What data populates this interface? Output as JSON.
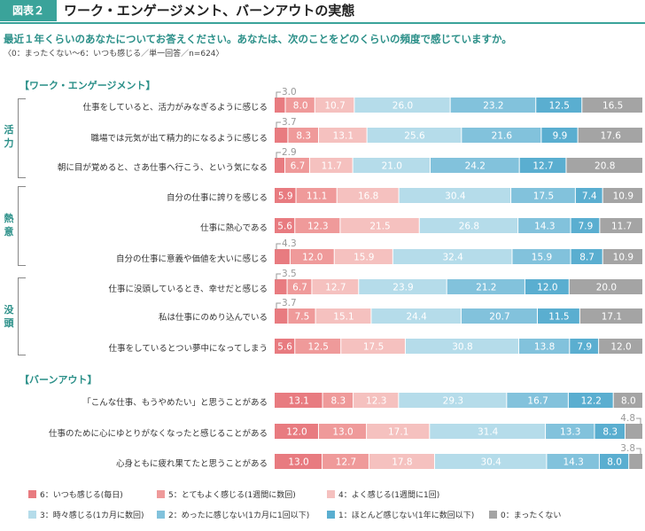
{
  "header": {
    "badge": "図表２",
    "title": "ワーク・エンゲージメント、バーンアウトの実態",
    "question": "最近１年くらいのあなたについてお答えください。あなたは、次のことをどのくらいの頻度で感じていますか。",
    "note": "〈0：まったくない〜6：いつも感じる／単一回答／n=624〉"
  },
  "chart_data": {
    "type": "bar",
    "orientation": "horizontal-stacked-100",
    "xlim": [
      0,
      100
    ],
    "categories_order": [
      "6",
      "5",
      "4",
      "3",
      "2",
      "1",
      "0"
    ],
    "legend": [
      {
        "label": "6：いつも感じる(毎日)",
        "color": "#e87b80"
      },
      {
        "label": "5：とてもよく感じる(1週間に数回)",
        "color": "#ef9a9a"
      },
      {
        "label": "4：よく感じる(1週間に1回)",
        "color": "#f5c1bf"
      },
      {
        "label": "3：時々感じる(1カ月に数回)",
        "color": "#b5dcea"
      },
      {
        "label": "2：めったに感じない(1カ月に1回以下)",
        "color": "#82c2dc"
      },
      {
        "label": "1：ほとんど感じない(1年に数回以下)",
        "color": "#5aaed0"
      },
      {
        "label": "0：まったくない",
        "color": "#a4a4a4"
      }
    ],
    "sections": [
      {
        "title": "【ワーク・エンゲージメント】",
        "groups": [
          {
            "name": "活力",
            "rows": [
              {
                "label": "仕事をしていると、活力がみなぎるように感じる",
                "values": [
                  3.0,
                  8.0,
                  10.7,
                  26.0,
                  23.2,
                  12.5,
                  16.5
                ]
              },
              {
                "label": "職場では元気が出て精力的になるように感じる",
                "values": [
                  3.7,
                  8.3,
                  13.1,
                  25.6,
                  21.6,
                  9.9,
                  17.6
                ]
              },
              {
                "label": "朝に目が覚めると、さあ仕事へ行こう、という気になる",
                "values": [
                  2.9,
                  6.7,
                  11.7,
                  21.0,
                  24.2,
                  12.7,
                  20.8
                ]
              }
            ]
          },
          {
            "name": "熱意",
            "rows": [
              {
                "label": "自分の仕事に誇りを感じる",
                "values": [
                  5.9,
                  11.1,
                  16.8,
                  30.4,
                  17.5,
                  7.4,
                  10.9
                ]
              },
              {
                "label": "仕事に熱心である",
                "values": [
                  5.6,
                  12.3,
                  21.5,
                  26.8,
                  14.3,
                  7.9,
                  11.7
                ]
              },
              {
                "label": "自分の仕事に意義や価値を大いに感じる",
                "values": [
                  4.3,
                  12.0,
                  15.9,
                  32.4,
                  15.9,
                  8.7,
                  10.9
                ]
              }
            ]
          },
          {
            "name": "没頭",
            "rows": [
              {
                "label": "仕事に没頭しているとき、幸せだと感じる",
                "values": [
                  3.5,
                  6.7,
                  12.7,
                  23.9,
                  21.2,
                  12.0,
                  20.0
                ]
              },
              {
                "label": "私は仕事にのめり込んでいる",
                "values": [
                  3.7,
                  7.5,
                  15.1,
                  24.4,
                  20.7,
                  11.5,
                  17.1
                ]
              },
              {
                "label": "仕事をしているとつい夢中になってしまう",
                "values": [
                  5.6,
                  12.5,
                  17.5,
                  30.8,
                  13.8,
                  7.9,
                  12.0
                ]
              }
            ]
          }
        ]
      },
      {
        "title": "【バーンアウト】",
        "groups": [
          {
            "name": "",
            "rows": [
              {
                "label": "「こんな仕事、もうやめたい」と思うことがある",
                "values": [
                  13.1,
                  8.3,
                  12.3,
                  29.3,
                  16.7,
                  12.2,
                  8.0
                ]
              },
              {
                "label": "仕事のために心にゆとりがなくなったと感じることがある",
                "values": [
                  12.0,
                  13.0,
                  17.1,
                  31.4,
                  13.3,
                  8.3,
                  4.8
                ]
              },
              {
                "label": "心身ともに疲れ果てたと思うことがある",
                "values": [
                  13.0,
                  12.7,
                  17.8,
                  30.4,
                  14.3,
                  8.0,
                  3.8
                ]
              }
            ]
          }
        ]
      }
    ]
  }
}
